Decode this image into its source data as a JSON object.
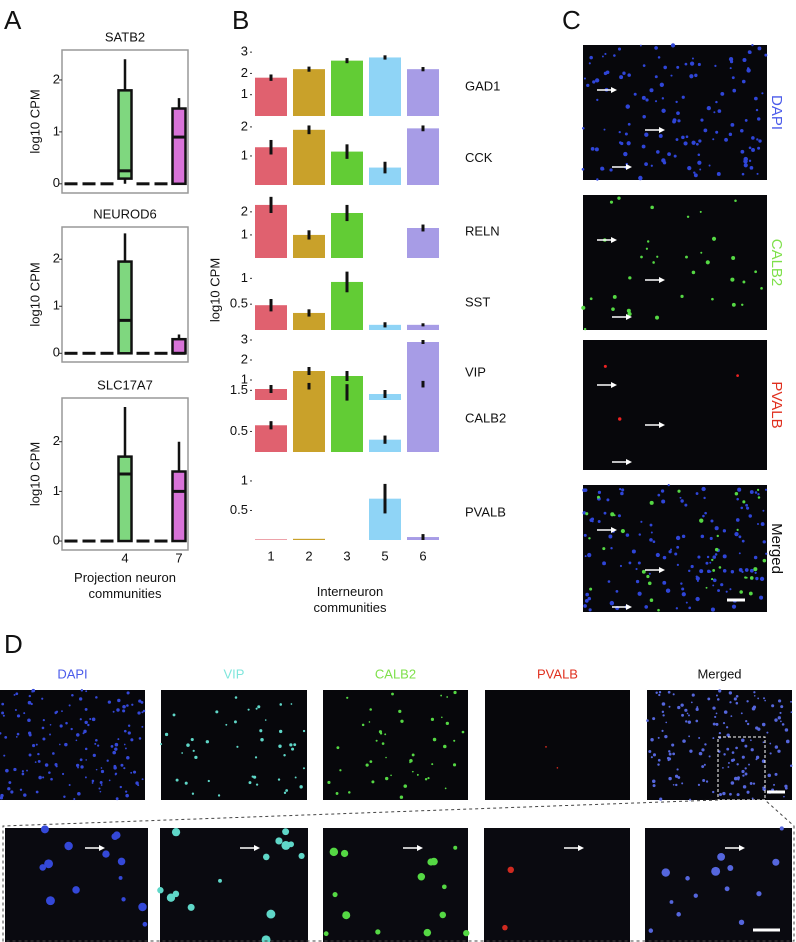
{
  "panel_labels": [
    "A",
    "B",
    "C",
    "D"
  ],
  "panel_a": {
    "xlabel": "Projection neuron communities"
  },
  "panel_b": {
    "ylabel": "log10 CPM",
    "xlabel": "Interneuron communities"
  },
  "panel_c": {
    "channels": [
      "DAPI",
      "CALB2",
      "PVALB",
      "Merged"
    ]
  },
  "panel_d": {
    "channels": [
      "DAPI",
      "VIP",
      "CALB2",
      "PVALB",
      "Merged"
    ]
  },
  "chart_data": [
    {
      "type": "box",
      "title": "SATB2",
      "ylabel": "log10 CPM",
      "categories": [
        null,
        null,
        null,
        "4",
        null,
        null,
        "7"
      ],
      "colors": [
        "#222222",
        "#222222",
        "#222222",
        "#7fd77f",
        "#222222",
        "#222222",
        "#d873d8"
      ],
      "min": [
        0,
        0,
        0,
        0,
        0,
        0,
        0
      ],
      "q1": [
        0,
        0,
        0,
        0.1,
        0,
        0,
        0
      ],
      "median": [
        0,
        0,
        0,
        0.25,
        0,
        0,
        0.9
      ],
      "q3": [
        0,
        0,
        0,
        1.8,
        0,
        0,
        1.45
      ],
      "max": [
        0,
        0,
        0,
        2.4,
        0,
        0,
        1.65
      ],
      "ylim": [
        -0.1,
        2.5
      ],
      "yticks": [
        0,
        1,
        2
      ]
    },
    {
      "type": "box",
      "title": "NEUROD6",
      "ylabel": "log10 CPM",
      "categories": [
        null,
        null,
        null,
        "4",
        null,
        null,
        "7"
      ],
      "colors": [
        "#222222",
        "#222222",
        "#222222",
        "#7fd77f",
        "#222222",
        "#222222",
        "#d873d8"
      ],
      "min": [
        0,
        0,
        0,
        0,
        0,
        0,
        0
      ],
      "q1": [
        0,
        0,
        0,
        0,
        0,
        0,
        0
      ],
      "median": [
        0,
        0,
        0,
        0.7,
        0,
        0,
        0
      ],
      "q3": [
        0,
        0,
        0,
        1.95,
        0,
        0,
        0.3
      ],
      "max": [
        0,
        0,
        0,
        2.55,
        0,
        0,
        0.4
      ],
      "ylim": [
        -0.1,
        2.6
      ],
      "yticks": [
        0,
        1,
        2
      ]
    },
    {
      "type": "box",
      "title": "SLC17A7",
      "ylabel": "log10 CPM",
      "categories": [
        null,
        null,
        null,
        "4",
        null,
        null,
        "7"
      ],
      "colors": [
        "#222222",
        "#222222",
        "#222222",
        "#7fd77f",
        "#222222",
        "#222222",
        "#d873d8"
      ],
      "min": [
        0,
        0,
        0,
        0,
        0,
        0,
        0
      ],
      "q1": [
        0,
        0,
        0,
        0,
        0,
        0,
        0
      ],
      "median": [
        0,
        0,
        0,
        1.35,
        0,
        0,
        1.0
      ],
      "q3": [
        0,
        0,
        0,
        1.7,
        0,
        0,
        1.4
      ],
      "max": [
        0,
        0,
        0,
        2.7,
        0,
        0,
        2.0
      ],
      "ylim": [
        -0.1,
        2.8
      ],
      "yticks": [
        0,
        1,
        2
      ]
    },
    {
      "type": "bar",
      "title": "GAD1",
      "categories": [
        "1",
        "2",
        "3",
        "5",
        "6"
      ],
      "colors": [
        "#e0616f",
        "#c9a12a",
        "#62cc35",
        "#8fd4f6",
        "#a79ce6"
      ],
      "values": [
        1.8,
        2.2,
        2.6,
        2.75,
        2.2
      ],
      "errors": [
        0.15,
        0.12,
        0.12,
        0.1,
        0.1
      ],
      "ylim": [
        0,
        3.1
      ],
      "yticks": [
        1,
        2,
        3
      ]
    },
    {
      "type": "bar",
      "title": "CCK",
      "categories": [
        "1",
        "2",
        "3",
        "5",
        "6"
      ],
      "colors": [
        "#e0616f",
        "#c9a12a",
        "#62cc35",
        "#8fd4f6",
        "#a79ce6"
      ],
      "values": [
        1.3,
        1.9,
        1.15,
        0.6,
        1.95
      ],
      "errors": [
        0.25,
        0.15,
        0.25,
        0.2,
        0.1
      ],
      "ylim": [
        0,
        2.1
      ],
      "yticks": [
        1,
        2
      ]
    },
    {
      "type": "bar",
      "title": "RELN",
      "categories": [
        "1",
        "2",
        "3",
        "5",
        "6"
      ],
      "colors": [
        "#e0616f",
        "#c9a12a",
        "#62cc35",
        "#8fd4f6",
        "#a79ce6"
      ],
      "values": [
        2.3,
        1.0,
        1.95,
        0,
        1.3
      ],
      "errors": [
        0.35,
        0.2,
        0.35,
        0,
        0.15
      ],
      "ylim": [
        0,
        2.6
      ],
      "yticks": [
        1,
        2
      ]
    },
    {
      "type": "bar",
      "title": "SST",
      "categories": [
        "1",
        "2",
        "3",
        "5",
        "6"
      ],
      "colors": [
        "#e0616f",
        "#c9a12a",
        "#62cc35",
        "#8fd4f6",
        "#a79ce6"
      ],
      "values": [
        0.48,
        0.33,
        0.93,
        0.1,
        0.1
      ],
      "errors": [
        0.12,
        0.07,
        0.2,
        0.05,
        0.03
      ],
      "ylim": [
        0,
        1.2
      ],
      "yticks": [
        0.5,
        1
      ]
    },
    {
      "type": "bar",
      "title": "VIP",
      "categories": [
        "1",
        "2",
        "3",
        "5",
        "6"
      ],
      "colors": [
        "#e0616f",
        "#c9a12a",
        "#62cc35",
        "#8fd4f6",
        "#a79ce6"
      ],
      "values": [
        0.55,
        1.45,
        1.2,
        0.3,
        2.9
      ],
      "errors": [
        0.2,
        0.2,
        0.25,
        0.2,
        0.1
      ],
      "ylim": [
        0,
        3.1
      ],
      "yticks": [
        1,
        2,
        3
      ]
    },
    {
      "type": "bar",
      "title": "CALB2",
      "categories": [
        "1",
        "2",
        "3",
        "5",
        "6"
      ],
      "colors": [
        "#e0616f",
        "#c9a12a",
        "#62cc35",
        "#8fd4f6",
        "#a79ce6"
      ],
      "values": [
        0.65,
        1.6,
        1.45,
        0.3,
        1.65
      ],
      "errors": [
        0.1,
        0.08,
        0.2,
        0.1,
        0.08
      ],
      "ylim": [
        0,
        1.8
      ],
      "yticks": [
        0.5,
        1.5
      ]
    },
    {
      "type": "bar",
      "title": "PVALB",
      "categories": [
        "1",
        "2",
        "3",
        "5",
        "6"
      ],
      "colors": [
        "#e0616f",
        "#c9a12a",
        "#62cc35",
        "#8fd4f6",
        "#a79ce6"
      ],
      "values": [
        0.01,
        0.02,
        0,
        0.7,
        0.05
      ],
      "errors": [
        0,
        0,
        0,
        0.25,
        0.05
      ],
      "ylim": [
        0,
        1.05
      ],
      "yticks": [
        0.5,
        1
      ]
    }
  ]
}
